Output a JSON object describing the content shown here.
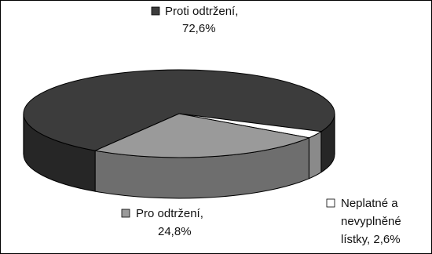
{
  "chart_data": {
    "type": "pie",
    "style": "3d",
    "slices": [
      {
        "name": "Proti odtržení,",
        "value_text": "72,6%",
        "value": 72.6,
        "color": "#3c3c3c",
        "side_color": "#262626"
      },
      {
        "name": "Pro odtržení,",
        "value_text": "24,8%",
        "value": 24.8,
        "color": "#9a9a9a",
        "side_color": "#6e6e6e"
      },
      {
        "name": "Neplatné a",
        "name_line2": "nevyplněné",
        "name_line3": "lístky, 2,6%",
        "value": 2.6,
        "color": "#ffffff",
        "side_color": "#8a8a8a"
      }
    ]
  }
}
